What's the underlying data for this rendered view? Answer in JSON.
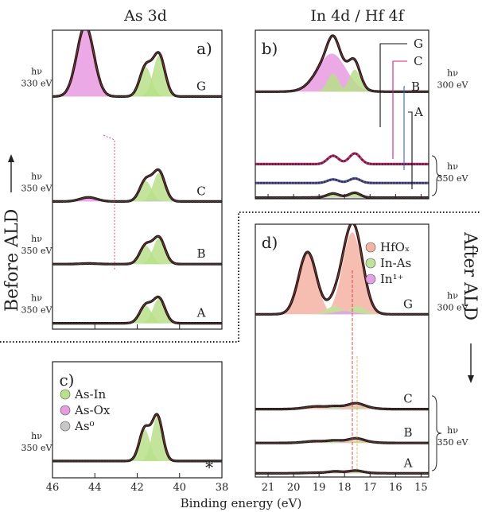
{
  "column_titles": {
    "left": "As 3d",
    "right": "In 4d / Hf 4f"
  },
  "side_labels": {
    "before": "Before ALD",
    "after": "After ALD"
  },
  "xlabel": "Binding energy (eV)",
  "colors": {
    "as_in": "#b9e08a",
    "as_ox": "#e79be0",
    "as0": "#c7c7c7",
    "hfox": "#f4b3a3",
    "in_as": "#bde49a",
    "in1": "#e3a0e8",
    "magenta": "#d21f7e",
    "blue": "#3b62d6",
    "dot": "#3a3030",
    "fit": "#d33a3a",
    "black": "#111111"
  },
  "chart_data": [
    {
      "id": "a",
      "panel_label": "a)",
      "type": "line",
      "title": "As 3d",
      "xlabel": "Binding energy (eV)",
      "xlim": [
        46,
        38
      ],
      "xticks": [
        46,
        44,
        42,
        40,
        38
      ],
      "legend": [],
      "spectra": [
        {
          "label": "G",
          "hv": "hν",
          "energy": "330 eV",
          "baseline": 0.56,
          "peaks": [
            [
              44.45,
              0.4,
              0.72,
              "as_ox"
            ],
            [
              41.6,
              0.28,
              0.3,
              "as_in"
            ],
            [
              40.97,
              0.28,
              0.42,
              "as_in"
            ]
          ]
        },
        {
          "label": "C",
          "hv": "hν",
          "energy": "350 eV",
          "baseline": 0.9,
          "peaks": [
            [
              44.3,
              0.4,
              0.06,
              "as_ox"
            ],
            [
              41.6,
              0.28,
              0.3,
              "as_in"
            ],
            [
              40.97,
              0.28,
              0.42,
              "as_in"
            ],
            [
              41.2,
              0.35,
              0.02,
              "as0"
            ]
          ]
        },
        {
          "label": "B",
          "hv": "hν",
          "energy": "350 eV",
          "baseline": 0.9,
          "peaks": [
            [
              44.3,
              0.4,
              0.01,
              "as_ox"
            ],
            [
              41.6,
              0.28,
              0.3,
              "as_in"
            ],
            [
              40.97,
              0.28,
              0.42,
              "as_in"
            ]
          ]
        },
        {
          "label": "A",
          "hv": "hν",
          "energy": "350 eV",
          "baseline": 0.9,
          "peaks": [
            [
              41.6,
              0.28,
              0.3,
              "as_in"
            ],
            [
              40.97,
              0.28,
              0.42,
              "as_in"
            ]
          ]
        }
      ]
    },
    {
      "id": "b",
      "panel_label": "b)",
      "type": "line",
      "title": "In 4d / Hf 4f",
      "xlabel": "Binding energy (eV)",
      "xlim": [
        21.5,
        14.7
      ],
      "xticks": [
        21,
        20,
        19,
        18,
        17,
        16,
        15
      ],
      "legend": [],
      "group_hv": "hν",
      "group_energy": "350 eV",
      "spectra": [
        {
          "label": "G",
          "hv": "hν",
          "energy": "300 eV",
          "baseline": 0.55,
          "line": "black",
          "peaks": [
            [
              18.5,
              0.55,
              0.38,
              "as_ox"
            ],
            [
              18.45,
              0.22,
              0.18,
              "as_in"
            ],
            [
              17.6,
              0.22,
              0.22,
              "as_in"
            ]
          ]
        },
        {
          "label": "C",
          "hv": "",
          "energy": "",
          "baseline": 0.82,
          "line": "magenta",
          "peaks": [
            [
              18.45,
              0.22,
              0.25,
              "none"
            ],
            [
              17.6,
              0.22,
              0.32,
              "none"
            ]
          ]
        },
        {
          "label": "B",
          "hv": "",
          "energy": "",
          "baseline": 0.9,
          "line": "blue",
          "peaks": [
            [
              18.45,
              0.22,
              0.25,
              "none"
            ],
            [
              17.6,
              0.22,
              0.32,
              "none"
            ]
          ]
        },
        {
          "label": "A",
          "hv": "",
          "energy": "",
          "baseline": 0.92,
          "line": "black",
          "peaks": [
            [
              18.45,
              0.22,
              0.25,
              "as_in"
            ],
            [
              17.6,
              0.22,
              0.32,
              "as_in"
            ],
            [
              18.7,
              0.35,
              0.03,
              "in1"
            ],
            [
              18.0,
              0.35,
              0.03,
              "in1"
            ]
          ]
        }
      ]
    },
    {
      "id": "c",
      "panel_label": "c)",
      "type": "line",
      "xlim": [
        46,
        38
      ],
      "xticks": [
        46,
        44,
        42,
        40,
        38
      ],
      "legend": [
        {
          "label": "As-In",
          "color": "as_in"
        },
        {
          "label": "As-Ox",
          "color": "as_ox"
        },
        {
          "label": "As⁰",
          "color": "as0"
        }
      ],
      "marker": "∗",
      "spectra": [
        {
          "label": "",
          "hv": "hν",
          "energy": "350 eV",
          "baseline": 0.88,
          "peaks": [
            [
              41.65,
              0.25,
              0.3,
              "as_in"
            ],
            [
              41.05,
              0.25,
              0.42,
              "as_in"
            ]
          ]
        }
      ]
    },
    {
      "id": "d",
      "panel_label": "d)",
      "type": "line",
      "xlim": [
        21.5,
        14.7
      ],
      "xticks": [
        21,
        20,
        19,
        18,
        17,
        16,
        15
      ],
      "legend": [
        {
          "label": "HfOₓ",
          "color": "hfox"
        },
        {
          "label": "In-As",
          "color": "in_as"
        },
        {
          "label": "In¹⁺",
          "color": "in1"
        }
      ],
      "group_hv": "hν",
      "group_energy": "350 eV",
      "spectra": [
        {
          "label": "G",
          "hv": "hν",
          "energy": "300 eV",
          "baseline": 0.55,
          "peaks": [
            [
              19.45,
              0.35,
              0.38,
              "hfox"
            ],
            [
              17.7,
              0.38,
              0.5,
              "hfox"
            ],
            [
              18.4,
              0.3,
              0.05,
              "in_as"
            ],
            [
              17.5,
              0.3,
              0.05,
              "in_as"
            ],
            [
              18.0,
              0.4,
              0.02,
              "in1"
            ]
          ]
        },
        {
          "label": "C",
          "hv": "",
          "energy": "",
          "baseline": 0.7,
          "peaks": [
            [
              19.1,
              0.45,
              0.09,
              "hfox"
            ],
            [
              17.55,
              0.45,
              0.13,
              "hfox"
            ],
            [
              18.4,
              0.25,
              0.05,
              "in_as"
            ],
            [
              17.55,
              0.25,
              0.06,
              "in_as"
            ],
            [
              18.0,
              0.4,
              0.01,
              "in1"
            ]
          ]
        },
        {
          "label": "B",
          "hv": "",
          "energy": "",
          "baseline": 0.82,
          "peaks": [
            [
              19.1,
              0.45,
              0.06,
              "hfox"
            ],
            [
              17.55,
              0.45,
              0.09,
              "hfox"
            ],
            [
              18.4,
              0.25,
              0.05,
              "in_as"
            ],
            [
              17.55,
              0.25,
              0.06,
              "in_as"
            ],
            [
              18.0,
              0.4,
              0.01,
              "in1"
            ]
          ]
        },
        {
          "label": "A",
          "hv": "",
          "energy": "",
          "baseline": 0.92,
          "peaks": [
            [
              19.1,
              0.45,
              0.02,
              "hfox"
            ],
            [
              17.55,
              0.45,
              0.03,
              "hfox"
            ],
            [
              18.4,
              0.25,
              0.05,
              "in_as"
            ],
            [
              17.55,
              0.25,
              0.06,
              "in_as"
            ],
            [
              18.0,
              0.4,
              0.015,
              "in1"
            ]
          ]
        }
      ]
    }
  ]
}
